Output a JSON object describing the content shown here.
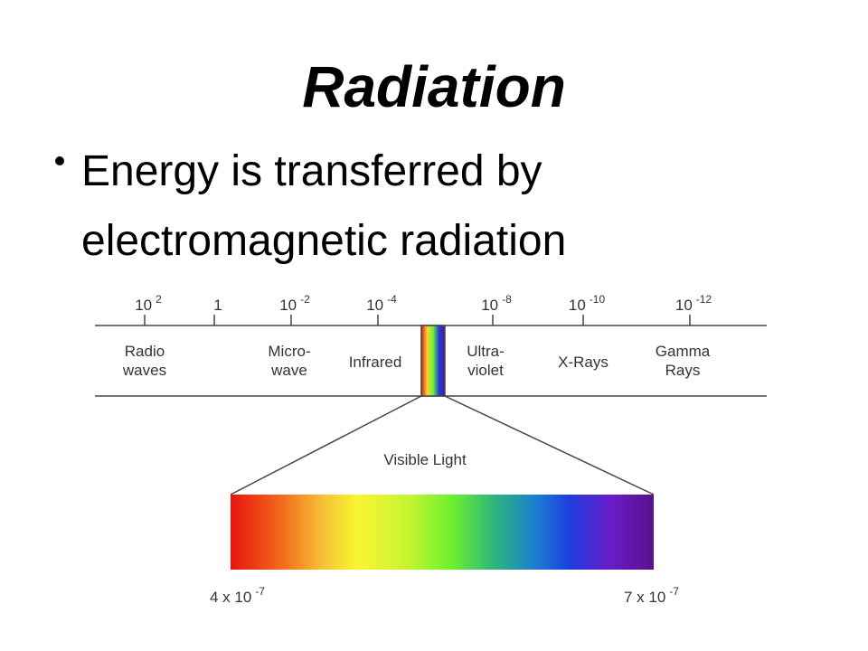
{
  "title": "Radiation",
  "bullets": [
    [
      "Energy is transferred by",
      "electromagnetic radiation"
    ]
  ],
  "diagram": {
    "wavelengths": [
      {
        "base": "10",
        "exp": "2"
      },
      {
        "base": "1",
        "exp": ""
      },
      {
        "base": "10",
        "exp": "-2"
      },
      {
        "base": "10",
        "exp": "-4"
      },
      {
        "base": "10",
        "exp": "-8"
      },
      {
        "base": "10",
        "exp": "-10"
      },
      {
        "base": "10",
        "exp": "-12"
      }
    ],
    "regions": [
      [
        "Radio",
        "waves"
      ],
      [
        "Micro-",
        "wave"
      ],
      [
        "Infrared"
      ],
      [
        "Ultra-",
        "violet"
      ],
      [
        "X-Rays"
      ],
      [
        "Gamma",
        "Rays"
      ]
    ],
    "visible_label": "Visible Light",
    "visible_range": [
      {
        "base": "4 x 10",
        "exp": "-7"
      },
      {
        "base": "7 x 10",
        "exp": "-7"
      }
    ]
  }
}
